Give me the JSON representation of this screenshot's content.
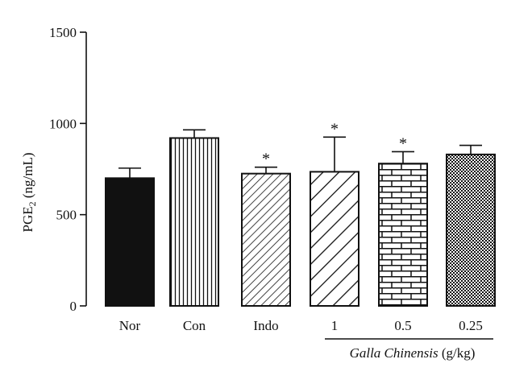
{
  "chart_data": {
    "type": "bar",
    "categories": [
      "Nor",
      "Con",
      "Indo",
      "1",
      "0.5",
      "0.25"
    ],
    "values": [
      700,
      920,
      725,
      735,
      780,
      830
    ],
    "errors": [
      55,
      45,
      35,
      190,
      65,
      50
    ],
    "significance": [
      "",
      "",
      "*",
      "*",
      "*",
      ""
    ],
    "fills": [
      "solid-black",
      "vertical-lines",
      "diagonal-lines-fine",
      "diagonal-lines-wide",
      "brick",
      "checkerboard"
    ],
    "ylabel": {
      "main": "PGE",
      "subscript": "2",
      "suffix": " (ng/mL)"
    },
    "yticks": [
      0,
      500,
      1000,
      1500
    ],
    "ylim": [
      0,
      1500
    ],
    "group_label": {
      "italic": "Galla Chinensis",
      "normal": " (g/kg)"
    },
    "group_indices": [
      3,
      4,
      5
    ],
    "grid": false,
    "colors": {
      "ink": "#111111",
      "background": "#ffffff"
    }
  }
}
